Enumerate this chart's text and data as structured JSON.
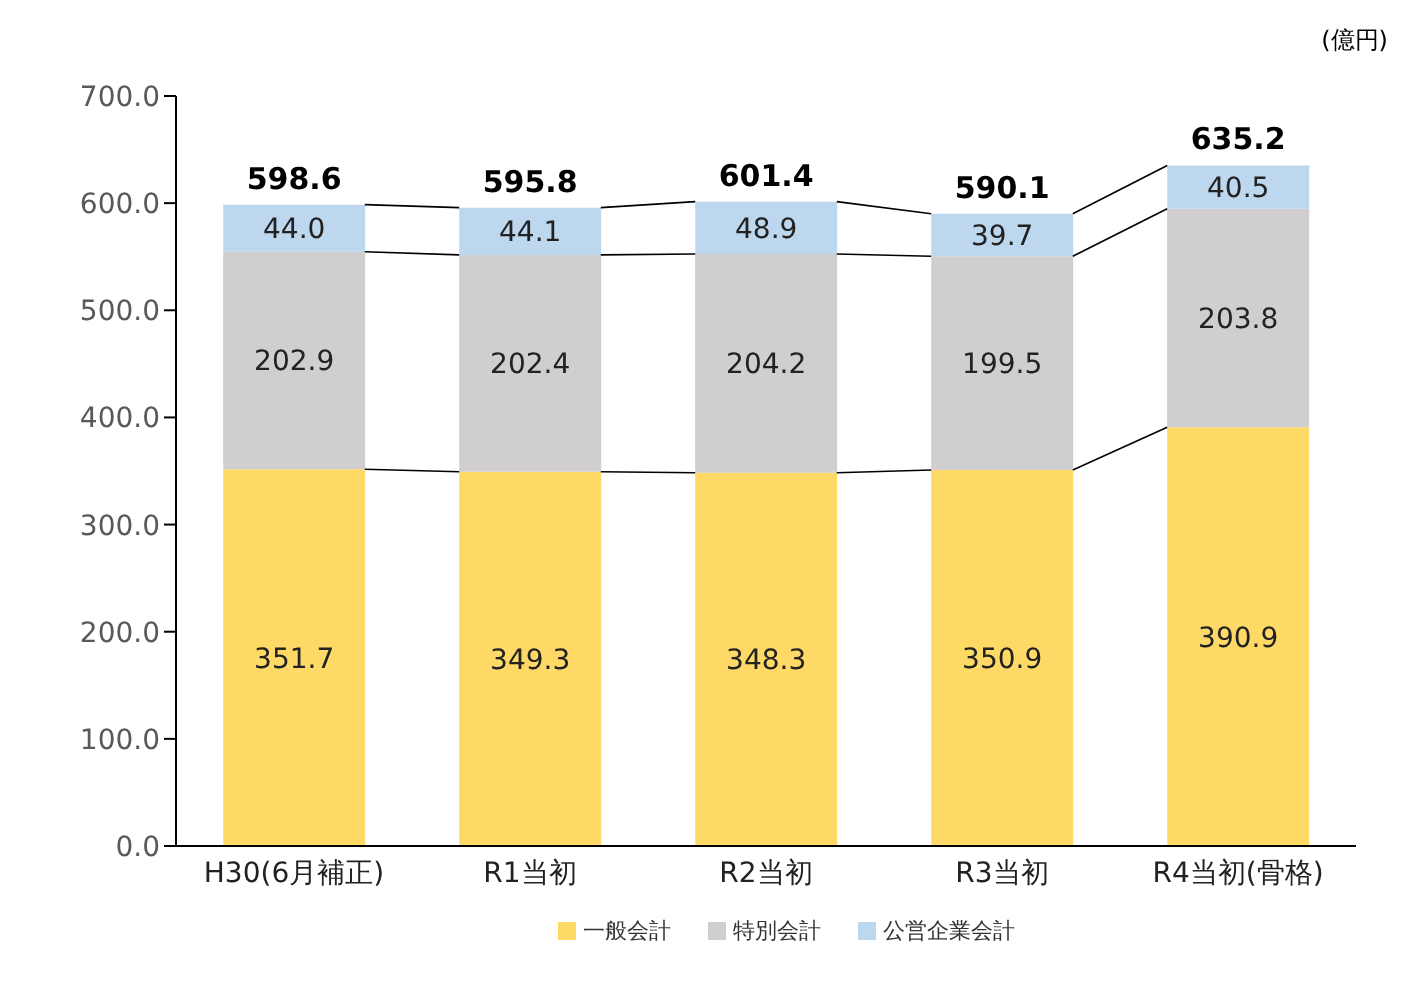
{
  "chart_data": {
    "type": "bar",
    "stacked": true,
    "ylabel": "(億円)",
    "categories": [
      "H30(6月補正)",
      "R1当初",
      "R2当初",
      "R3当初",
      "R4当初(骨格)"
    ],
    "series": [
      {
        "name": "一般会計",
        "color": "#ffd966",
        "values": [
          351.7,
          349.3,
          348.3,
          350.9,
          390.9
        ],
        "value_labels": [
          "351.7",
          "349.3",
          "348.3",
          "350.9",
          "390.9"
        ]
      },
      {
        "name": "特別会計",
        "color": "#d0cece",
        "values": [
          202.9,
          202.4,
          204.2,
          199.5,
          203.8
        ],
        "value_labels": [
          "202.9",
          "202.4",
          "204.2",
          "199.5",
          "203.8"
        ]
      },
      {
        "name": "公営企業会計",
        "color": "#bdd7ee",
        "values": [
          44.0,
          44.1,
          48.9,
          39.7,
          40.5
        ],
        "value_labels": [
          "44.0",
          "44.1",
          "48.9",
          "39.7",
          "40.5"
        ]
      }
    ],
    "totals": [
      "598.6",
      "595.8",
      "601.4",
      "590.1",
      "635.2"
    ],
    "ylim": [
      0,
      700
    ],
    "yticks": [
      {
        "value": 0,
        "label": "0.0"
      },
      {
        "value": 100,
        "label": "100.0"
      },
      {
        "value": 200,
        "label": "200.0"
      },
      {
        "value": 300,
        "label": "300.0"
      },
      {
        "value": 400,
        "label": "400.0"
      },
      {
        "value": 500,
        "label": "500.0"
      },
      {
        "value": 600,
        "label": "600.0"
      },
      {
        "value": 700,
        "label": "700.0"
      }
    ],
    "grid": false,
    "legend": "bottom"
  }
}
